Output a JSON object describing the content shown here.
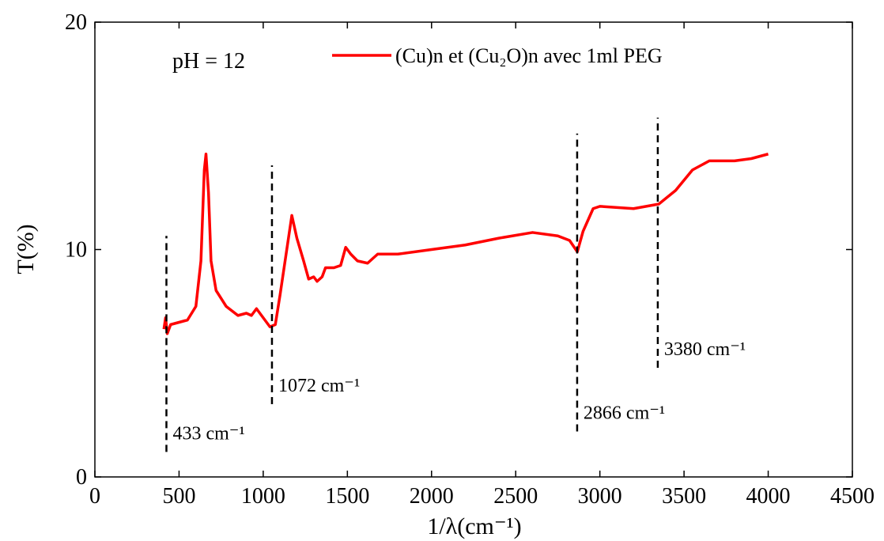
{
  "chart_data": {
    "type": "line",
    "x_label": "1/λ(cm⁻¹)",
    "y_label": "T(%)",
    "series": [
      {
        "name": "(Cu)n et (Cu₂O)n avec 1ml PEG",
        "color": "#ff0000",
        "x": [
          410,
          420,
          430,
          450,
          500,
          550,
          600,
          630,
          650,
          660,
          675,
          690,
          720,
          780,
          850,
          900,
          930,
          960,
          1000,
          1040,
          1072,
          1100,
          1140,
          1170,
          1200,
          1240,
          1270,
          1300,
          1320,
          1350,
          1370,
          1420,
          1460,
          1490,
          1520,
          1560,
          1620,
          1680,
          1800,
          2000,
          2200,
          2400,
          2600,
          2750,
          2820,
          2866,
          2900,
          2960,
          3000,
          3200,
          3350,
          3450,
          3550,
          3650,
          3800,
          3900,
          4000
        ],
        "values": [
          6.5,
          7.0,
          6.3,
          6.7,
          6.8,
          6.9,
          7.5,
          9.5,
          13.5,
          14.2,
          12.5,
          9.5,
          8.2,
          7.5,
          7.1,
          7.2,
          7.1,
          7.4,
          7.0,
          6.6,
          6.7,
          8.0,
          10.0,
          11.5,
          10.5,
          9.5,
          8.7,
          8.8,
          8.6,
          8.8,
          9.2,
          9.2,
          9.3,
          10.1,
          9.8,
          9.5,
          9.4,
          9.8,
          9.8,
          10.0,
          10.2,
          10.5,
          10.75,
          10.6,
          10.4,
          9.9,
          10.8,
          11.8,
          11.9,
          11.8,
          12.0,
          12.6,
          13.5,
          13.9,
          13.9,
          14.0,
          14.2
        ]
      }
    ],
    "xlim": [
      0,
      4500
    ],
    "xticks": [
      0,
      500,
      1000,
      1500,
      2000,
      2500,
      3000,
      3500,
      4000,
      4500
    ],
    "ylim": [
      0,
      20
    ],
    "yticks": [
      0,
      10,
      20
    ],
    "annotations": [
      {
        "text": "pH = 12"
      },
      {
        "text": "433 cm⁻¹",
        "x": 425,
        "y": [
          1.1,
          10.6
        ]
      },
      {
        "text": "1072 cm⁻¹",
        "x": 1052,
        "y": [
          3.2,
          13.7
        ]
      },
      {
        "text": "2866 cm⁻¹",
        "x": 2865,
        "y": [
          2.0,
          15.1
        ]
      },
      {
        "text": "3380 cm⁻¹",
        "x": 3344,
        "y": [
          4.8,
          15.8
        ]
      }
    ]
  }
}
